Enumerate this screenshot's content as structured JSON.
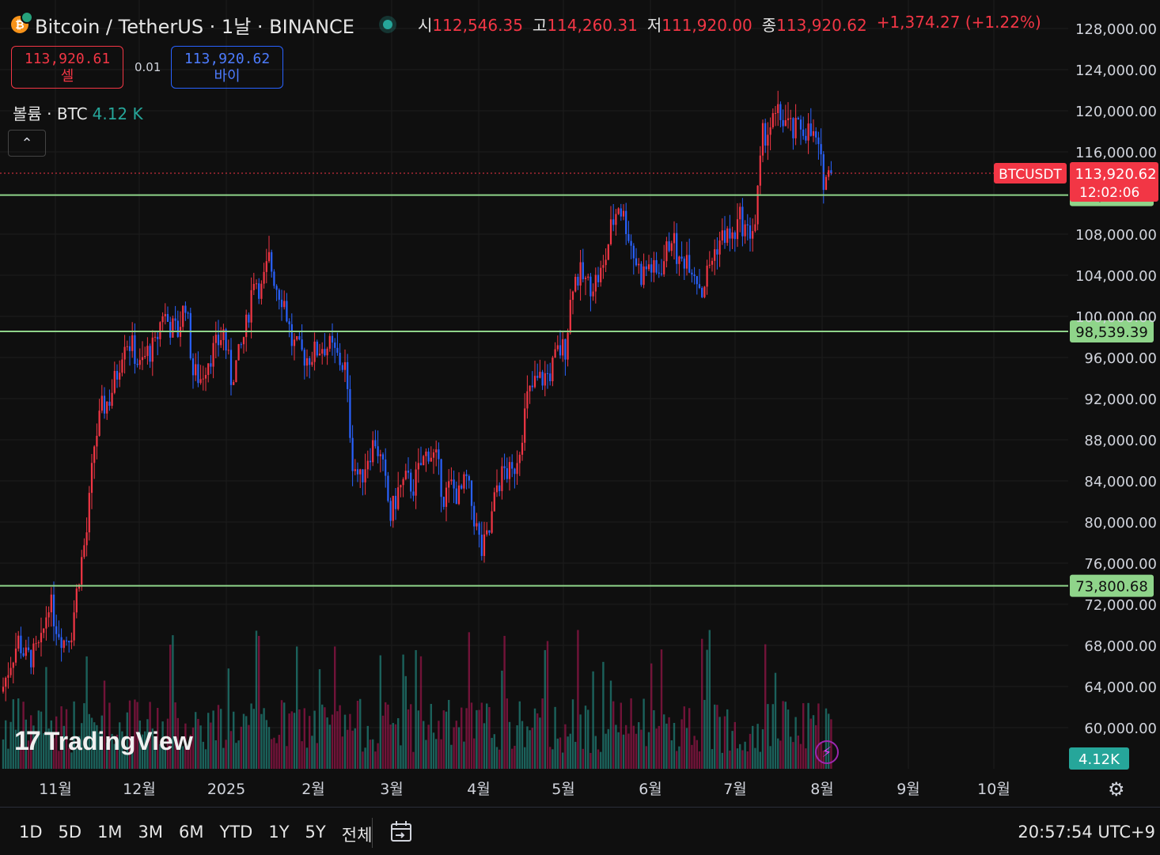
{
  "header": {
    "symbol_title": "Bitcoin / TetherUS · 1날 · BINANCE",
    "coin_icon": "bitcoin-icon",
    "ohlc": [
      {
        "key": "시",
        "value": "112,546.35"
      },
      {
        "key": "고",
        "value": "114,260.31"
      },
      {
        "key": "저",
        "value": "111,920.00"
      },
      {
        "key": "종",
        "value": "113,920.62"
      }
    ],
    "change": "+1,374.27 (+1.22%)"
  },
  "trade": {
    "sell_price": "113,920.61",
    "sell_label": "셀",
    "spread": "0.01",
    "buy_price": "113,920.62",
    "buy_label": "바이"
  },
  "volume_legend": {
    "label": "볼륨 · BTC",
    "value": "4.12 K"
  },
  "collapse_icon": "chevron-up-icon",
  "logo_text": "TradingView",
  "time_ranges": [
    "1D",
    "5D",
    "1M",
    "3M",
    "6M",
    "YTD",
    "1Y",
    "5Y",
    "전체"
  ],
  "clock": "20:57:54 UTC+9",
  "colors": {
    "up": "#f23645",
    "down": "#2962ff",
    "line": "#8fd48a",
    "bg": "#0f0f0f",
    "vol_up": "#26a69a",
    "vol_down": "#c2185b"
  },
  "chart_data": {
    "type": "candlestick",
    "symbol": "BTCUSDT",
    "ylim": [
      58000,
      130000
    ],
    "y_ticks": [
      "128,000.00",
      "124,000.00",
      "120,000.00",
      "116,000.00",
      "108,000.00",
      "104,000.00",
      "100,000.00",
      "96,000.00",
      "92,000.00",
      "88,000.00",
      "84,000.00",
      "80,000.00",
      "76,000.00",
      "72,000.00",
      "68,000.00",
      "64,000.00",
      "60,000.00"
    ],
    "x_ticks": [
      "11월",
      "12월",
      "2025",
      "2월",
      "3월",
      "4월",
      "5월",
      "6월",
      "7월",
      "8월",
      "9월",
      "10월"
    ],
    "last_price": {
      "label": "BTCUSDT",
      "price": "113,920.62",
      "countdown": "12:02:06",
      "value": 113920.62
    },
    "horizontal_lines": [
      {
        "value": 111800.0,
        "label": "111,800.00"
      },
      {
        "value": 98539.39,
        "label": "98,539.39"
      },
      {
        "value": 73800.68,
        "label": "73,800.68"
      }
    ],
    "volume_last": "4.12K",
    "daily_closes": [
      [
        0,
        64000
      ],
      [
        3,
        66500
      ],
      [
        6,
        68500
      ],
      [
        9,
        66800
      ],
      [
        12,
        67000
      ],
      [
        15,
        68000
      ],
      [
        18,
        72500
      ],
      [
        21,
        70000
      ],
      [
        24,
        68500
      ],
      [
        27,
        69500
      ],
      [
        30,
        75000
      ],
      [
        33,
        79000
      ],
      [
        36,
        87500
      ],
      [
        39,
        91000
      ],
      [
        42,
        92000
      ],
      [
        45,
        94500
      ],
      [
        48,
        98000
      ],
      [
        51,
        97000
      ],
      [
        54,
        95000
      ],
      [
        57,
        96500
      ],
      [
        60,
        97000
      ],
      [
        63,
        100500
      ],
      [
        66,
        99000
      ],
      [
        69,
        98500
      ],
      [
        72,
        101500
      ],
      [
        75,
        94500
      ],
      [
        78,
        94000
      ],
      [
        81,
        96000
      ],
      [
        84,
        97000
      ],
      [
        87,
        98500
      ],
      [
        90,
        94000
      ],
      [
        93,
        96000
      ],
      [
        96,
        99000
      ],
      [
        99,
        104000
      ],
      [
        102,
        102500
      ],
      [
        105,
        105500
      ],
      [
        108,
        103000
      ],
      [
        111,
        101500
      ],
      [
        114,
        97500
      ],
      [
        117,
        96500
      ],
      [
        120,
        96000
      ],
      [
        123,
        96500
      ],
      [
        126,
        97200
      ],
      [
        129,
        97000
      ],
      [
        132,
        96000
      ],
      [
        135,
        95000
      ],
      [
        138,
        86000
      ],
      [
        141,
        84000
      ],
      [
        144,
        86500
      ],
      [
        147,
        88000
      ],
      [
        150,
        85000
      ],
      [
        153,
        80500
      ],
      [
        156,
        83000
      ],
      [
        159,
        84000
      ],
      [
        162,
        83500
      ],
      [
        165,
        85500
      ],
      [
        168,
        87000
      ],
      [
        171,
        86000
      ],
      [
        174,
        82500
      ],
      [
        177,
        83500
      ],
      [
        180,
        82500
      ],
      [
        183,
        84000
      ],
      [
        186,
        80500
      ],
      [
        189,
        77000
      ],
      [
        192,
        79000
      ],
      [
        195,
        83500
      ],
      [
        198,
        85000
      ],
      [
        201,
        84500
      ],
      [
        204,
        87500
      ],
      [
        207,
        92000
      ],
      [
        210,
        93500
      ],
      [
        213,
        94000
      ],
      [
        216,
        94500
      ],
      [
        219,
        96500
      ],
      [
        222,
        97000
      ],
      [
        225,
        103500
      ],
      [
        228,
        104000
      ],
      [
        231,
        103000
      ],
      [
        234,
        103500
      ],
      [
        237,
        104500
      ],
      [
        240,
        108500
      ],
      [
        243,
        111000
      ],
      [
        246,
        109000
      ],
      [
        249,
        106000
      ],
      [
        252,
        104000
      ],
      [
        255,
        105000
      ],
      [
        258,
        104000
      ],
      [
        261,
        105500
      ],
      [
        264,
        108000
      ],
      [
        267,
        105000
      ],
      [
        270,
        106000
      ],
      [
        273,
        104500
      ],
      [
        276,
        102500
      ],
      [
        279,
        105000
      ],
      [
        282,
        107000
      ],
      [
        285,
        108000
      ],
      [
        288,
        107500
      ],
      [
        291,
        109500
      ],
      [
        294,
        108000
      ],
      [
        297,
        109000
      ],
      [
        300,
        117500
      ],
      [
        303,
        118500
      ],
      [
        306,
        119500
      ],
      [
        309,
        119000
      ],
      [
        312,
        117800
      ],
      [
        315,
        118500
      ],
      [
        318,
        118000
      ],
      [
        321,
        117000
      ],
      [
        324,
        113500
      ],
      [
        327,
        113920.62
      ]
    ]
  }
}
